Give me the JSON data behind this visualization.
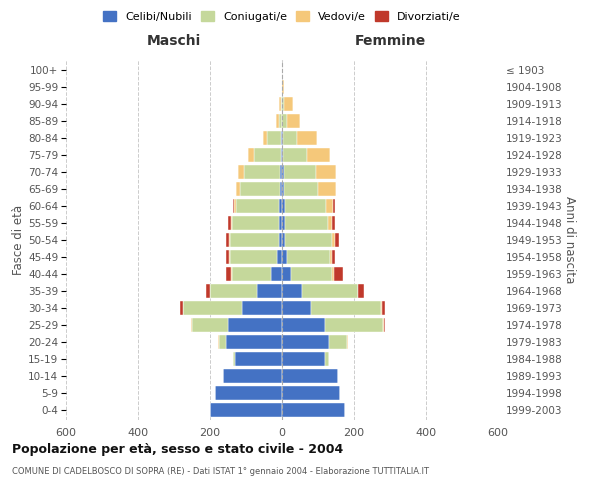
{
  "age_groups": [
    "0-4",
    "5-9",
    "10-14",
    "15-19",
    "20-24",
    "25-29",
    "30-34",
    "35-39",
    "40-44",
    "45-49",
    "50-54",
    "55-59",
    "60-64",
    "65-69",
    "70-74",
    "75-79",
    "80-84",
    "85-89",
    "90-94",
    "95-99",
    "100+"
  ],
  "birth_years": [
    "1999-2003",
    "1994-1998",
    "1989-1993",
    "1984-1988",
    "1979-1983",
    "1974-1978",
    "1969-1973",
    "1964-1968",
    "1959-1963",
    "1954-1958",
    "1949-1953",
    "1944-1948",
    "1939-1943",
    "1934-1938",
    "1929-1933",
    "1924-1928",
    "1919-1923",
    "1914-1918",
    "1909-1913",
    "1904-1908",
    "≤ 1903"
  ],
  "males": {
    "celibi": [
      200,
      185,
      165,
      130,
      155,
      150,
      110,
      70,
      30,
      14,
      9,
      8,
      7,
      6,
      5,
      4,
      2,
      0,
      0,
      0,
      0
    ],
    "coniugati": [
      0,
      0,
      0,
      5,
      20,
      100,
      165,
      130,
      110,
      130,
      135,
      130,
      120,
      110,
      100,
      75,
      40,
      8,
      4,
      1,
      0
    ],
    "vedovi": [
      0,
      0,
      0,
      0,
      2,
      2,
      0,
      0,
      1,
      2,
      2,
      4,
      5,
      12,
      18,
      15,
      12,
      10,
      3,
      0,
      0
    ],
    "divorziati": [
      0,
      0,
      0,
      0,
      0,
      0,
      8,
      10,
      15,
      10,
      10,
      8,
      5,
      0,
      0,
      0,
      0,
      0,
      0,
      0,
      0
    ]
  },
  "females": {
    "nubili": [
      175,
      160,
      155,
      120,
      130,
      120,
      80,
      55,
      25,
      14,
      9,
      8,
      8,
      6,
      5,
      4,
      2,
      0,
      0,
      0,
      0
    ],
    "coniugate": [
      0,
      0,
      0,
      10,
      50,
      160,
      195,
      155,
      115,
      120,
      130,
      120,
      115,
      95,
      90,
      65,
      40,
      15,
      5,
      0,
      0
    ],
    "vedove": [
      0,
      0,
      0,
      0,
      2,
      2,
      2,
      2,
      4,
      5,
      8,
      10,
      20,
      50,
      55,
      65,
      55,
      35,
      25,
      5,
      0
    ],
    "divorziate": [
      0,
      0,
      0,
      0,
      2,
      4,
      10,
      15,
      25,
      8,
      10,
      8,
      5,
      0,
      0,
      0,
      0,
      0,
      0,
      0,
      0
    ]
  },
  "colors": {
    "celibi": "#4472C4",
    "coniugati": "#c5d89b",
    "vedovi": "#f5c87a",
    "divorziati": "#c0392b"
  },
  "xlim": 600,
  "title": "Popolazione per età, sesso e stato civile - 2004",
  "subtitle": "COMUNE DI CADELBOSCO DI SOPRA (RE) - Dati ISTAT 1° gennaio 2004 - Elaborazione TUTTITALIA.IT",
  "xlabel_left": "Maschi",
  "xlabel_right": "Femmine",
  "ylabel_left": "Fasce di età",
  "ylabel_right": "Anni di nascita",
  "legend_labels": [
    "Celibi/Nubili",
    "Coniugati/e",
    "Vedovi/e",
    "Divorziati/e"
  ]
}
